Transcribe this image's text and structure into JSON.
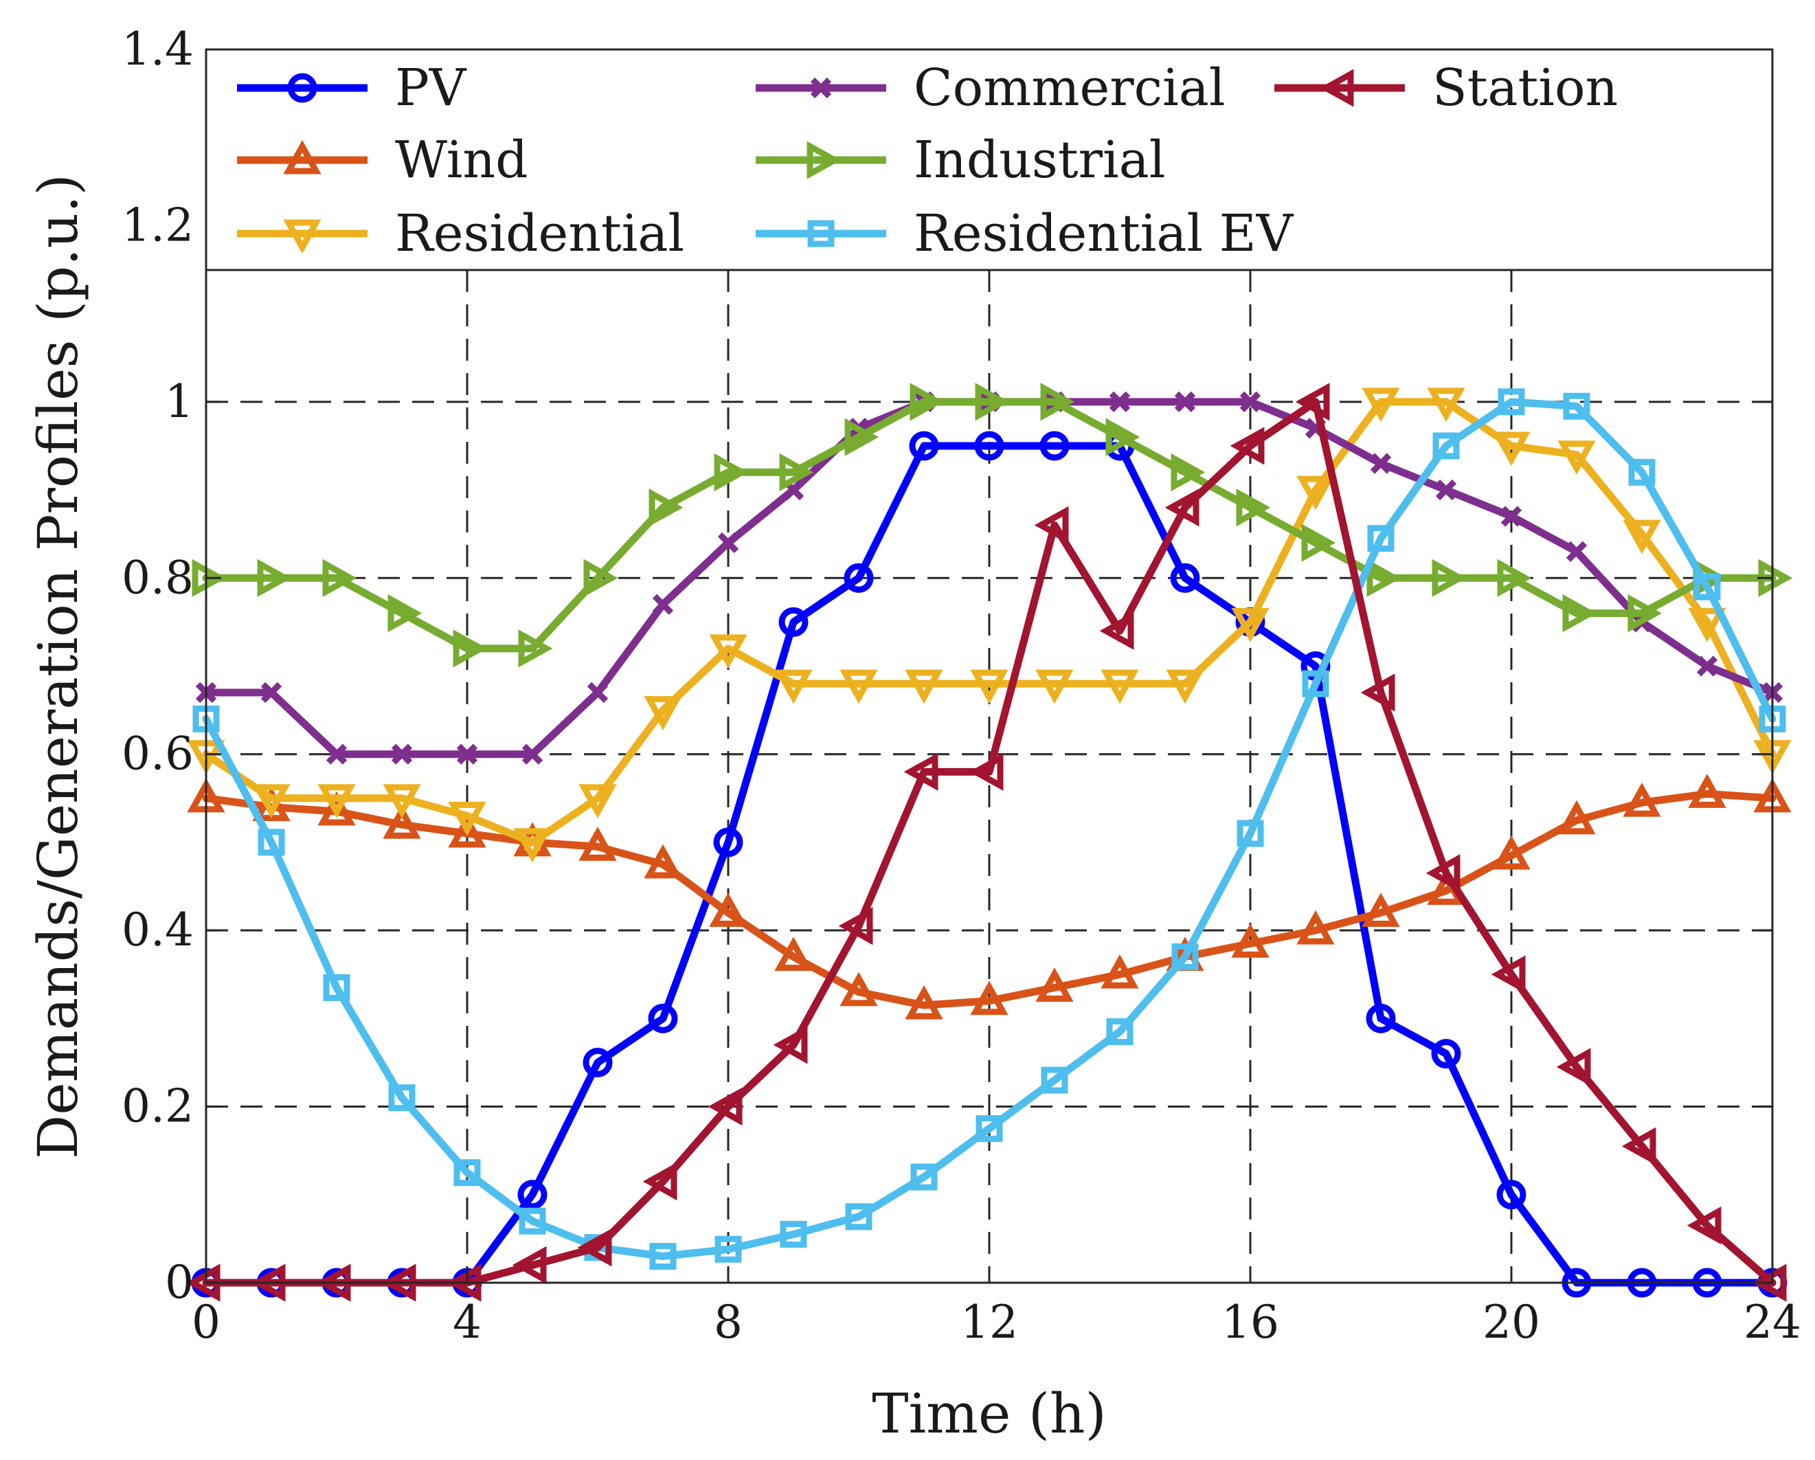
{
  "chart_data": {
    "type": "line",
    "title": "",
    "xlabel": "Time (h)",
    "ylabel": "Demands/Generation Profiles (p.u.)",
    "xlim": [
      0,
      24
    ],
    "ylim": [
      0,
      1.4
    ],
    "xticks": [
      0,
      4,
      8,
      12,
      16,
      20,
      24
    ],
    "yticks": [
      0,
      0.2,
      0.4,
      0.6,
      0.8,
      1,
      1.2,
      1.4
    ],
    "ytick_labels": [
      "0",
      "0.2",
      "0.4",
      "0.6",
      "0.8",
      "1",
      "1.2",
      "1.4"
    ],
    "grid": true,
    "legend_position": "top",
    "x": [
      0,
      1,
      2,
      3,
      4,
      5,
      6,
      7,
      8,
      9,
      10,
      11,
      12,
      13,
      14,
      15,
      16,
      17,
      18,
      19,
      20,
      21,
      22,
      23,
      24
    ],
    "series": [
      {
        "name": "PV",
        "color": "#0000ff",
        "marker": "circle",
        "values": [
          0,
          0,
          0,
          0,
          0,
          0.1,
          0.25,
          0.3,
          0.5,
          0.75,
          0.8,
          0.95,
          0.95,
          0.95,
          0.95,
          0.8,
          0.75,
          0.7,
          0.3,
          0.26,
          0.1,
          0,
          0,
          0,
          0
        ]
      },
      {
        "name": "Wind",
        "color": "#d95319",
        "marker": "triangle-up",
        "values": [
          0.55,
          0.54,
          0.535,
          0.52,
          0.51,
          0.5,
          0.495,
          0.475,
          0.42,
          0.37,
          0.33,
          0.315,
          0.32,
          0.335,
          0.35,
          0.37,
          0.385,
          0.4,
          0.42,
          0.445,
          0.485,
          0.525,
          0.545,
          0.555,
          0.55
        ]
      },
      {
        "name": "Residential",
        "color": "#edb120",
        "marker": "triangle-down",
        "values": [
          0.6,
          0.55,
          0.55,
          0.55,
          0.53,
          0.5,
          0.55,
          0.65,
          0.72,
          0.68,
          0.68,
          0.68,
          0.68,
          0.68,
          0.68,
          0.68,
          0.75,
          0.9,
          1.0,
          1.0,
          0.95,
          0.94,
          0.85,
          0.75,
          0.6
        ]
      },
      {
        "name": "Commercial",
        "color": "#7e2f8e",
        "marker": "x",
        "values": [
          0.67,
          0.67,
          0.6,
          0.6,
          0.6,
          0.6,
          0.67,
          0.77,
          0.84,
          0.9,
          0.97,
          1.0,
          1.0,
          1.0,
          1.0,
          1.0,
          1.0,
          0.97,
          0.93,
          0.9,
          0.87,
          0.83,
          0.75,
          0.7,
          0.67
        ]
      },
      {
        "name": "Industrial",
        "color": "#77ac30",
        "marker": "triangle-right",
        "values": [
          0.8,
          0.8,
          0.8,
          0.76,
          0.72,
          0.72,
          0.8,
          0.88,
          0.92,
          0.92,
          0.96,
          1.0,
          1.0,
          1.0,
          0.96,
          0.92,
          0.88,
          0.84,
          0.8,
          0.8,
          0.8,
          0.76,
          0.76,
          0.8,
          0.8
        ]
      },
      {
        "name": "Residential EV",
        "color": "#4dbeee",
        "marker": "square",
        "values": [
          0.64,
          0.5,
          0.335,
          0.21,
          0.125,
          0.07,
          0.04,
          0.03,
          0.038,
          0.055,
          0.075,
          0.12,
          0.175,
          0.23,
          0.285,
          0.37,
          0.51,
          0.68,
          0.845,
          0.95,
          1.0,
          0.995,
          0.92,
          0.79,
          0.64
        ]
      },
      {
        "name": "Station",
        "color": "#a2142f",
        "marker": "triangle-left",
        "values": [
          0,
          0,
          0,
          0,
          0,
          0.02,
          0.04,
          0.115,
          0.2,
          0.27,
          0.405,
          0.58,
          0.58,
          0.86,
          0.74,
          0.88,
          0.95,
          1.0,
          0.67,
          0.465,
          0.35,
          0.245,
          0.155,
          0.065,
          0
        ]
      }
    ]
  }
}
